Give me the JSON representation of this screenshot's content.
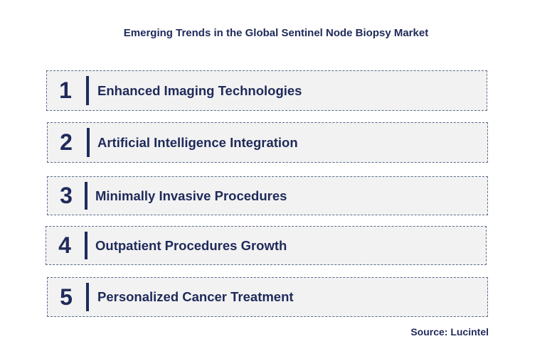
{
  "title": "Emerging Trends in the Global Sentinel Node Biopsy Market",
  "trends": [
    {
      "number": "1",
      "label": "Enhanced Imaging Technologies"
    },
    {
      "number": "2",
      "label": "Artificial Intelligence Integration"
    },
    {
      "number": "3",
      "label": "Minimally Invasive Procedures"
    },
    {
      "number": "4",
      "label": "Outpatient Procedures Growth"
    },
    {
      "number": "5",
      "label": "Personalized Cancer Treatment"
    }
  ],
  "source": "Source: Lucintel",
  "colors": {
    "text": "#1f2a5a",
    "box_fill": "#f2f2f2",
    "box_border": "#5b6b8c"
  }
}
